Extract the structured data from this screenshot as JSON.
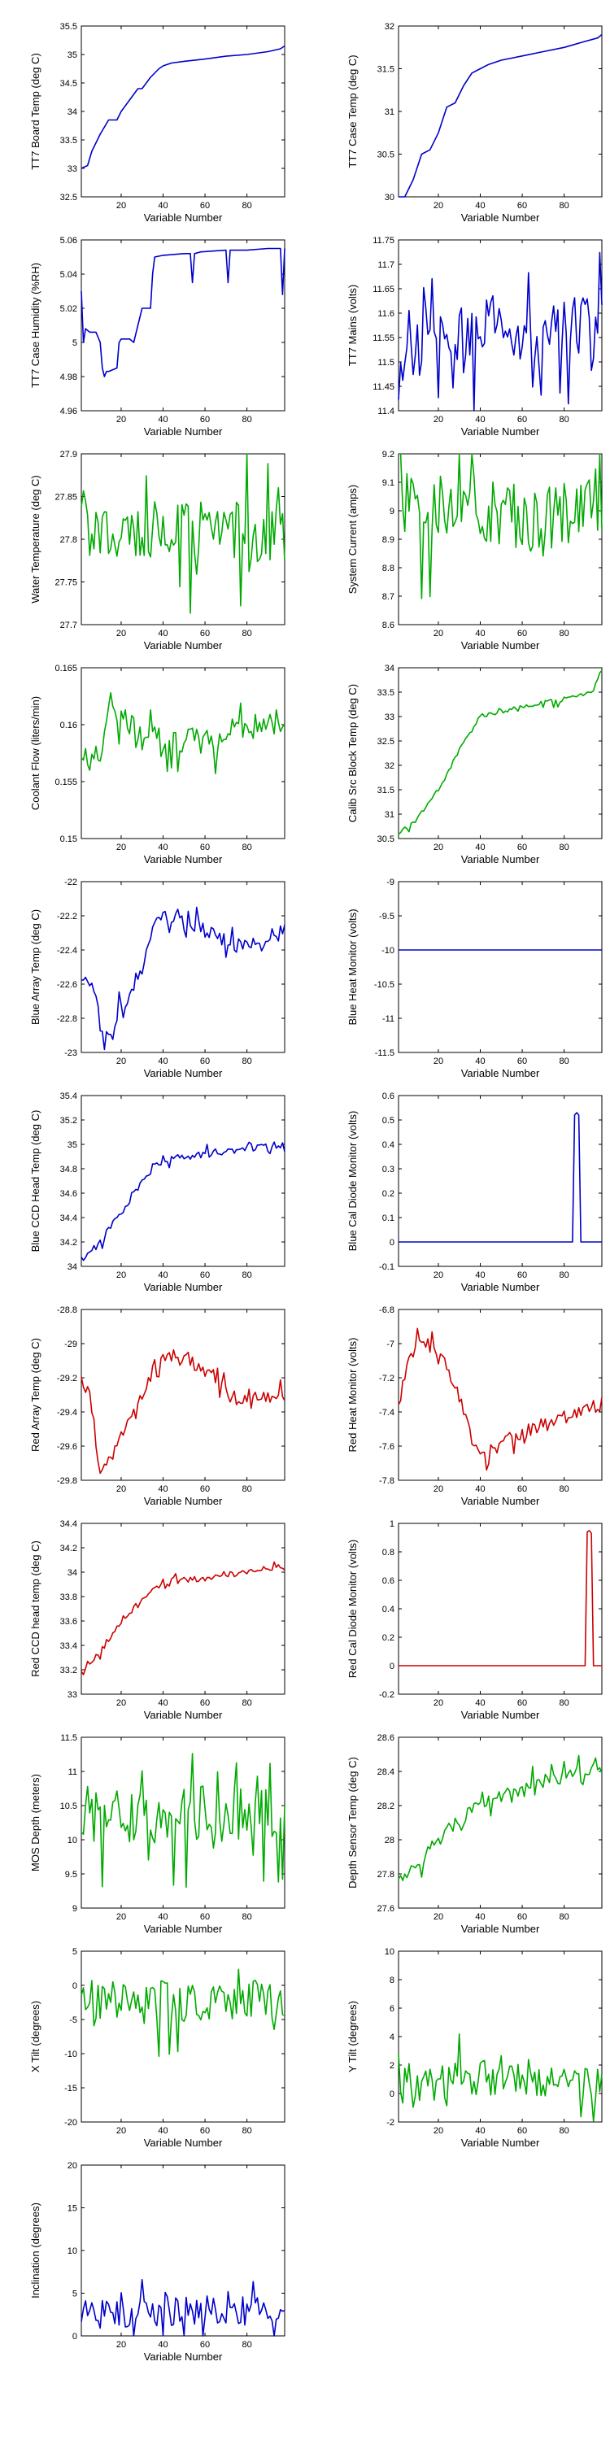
{
  "chart_data": [
    {
      "type": "line",
      "ylabel": "TT7 Board Temp (deg C)",
      "xlabel": "Variable Number",
      "xlim": [
        1,
        98
      ],
      "ylim": [
        32.5,
        35.5
      ],
      "xticks": [
        20,
        40,
        60,
        80
      ],
      "yticks": [
        "32.5",
        "33",
        "33.5",
        "34",
        "34.5",
        "35",
        "35.5"
      ],
      "color": "#0000cc",
      "style": "smooth",
      "series": [
        {
          "x": [
            1,
            4,
            6,
            10,
            14,
            18,
            20,
            24,
            28,
            30,
            34,
            38,
            40,
            44,
            50,
            60,
            70,
            80,
            90,
            96,
            98
          ],
          "values": [
            33.0,
            33.05,
            33.3,
            33.6,
            33.85,
            33.85,
            34.0,
            34.2,
            34.4,
            34.4,
            34.6,
            34.75,
            34.8,
            34.85,
            34.88,
            34.92,
            34.97,
            35.0,
            35.05,
            35.1,
            35.15
          ]
        }
      ]
    },
    {
      "type": "line",
      "ylabel": "TT7 Case Temp (deg C)",
      "xlabel": "Variable Number",
      "xlim": [
        1,
        98
      ],
      "ylim": [
        30,
        32
      ],
      "xticks": [
        20,
        40,
        60,
        80
      ],
      "yticks": [
        "30",
        "30.5",
        "31",
        "31.5",
        "32"
      ],
      "color": "#0000cc",
      "style": "smooth",
      "series": [
        {
          "x": [
            1,
            4,
            8,
            12,
            16,
            20,
            24,
            28,
            32,
            36,
            40,
            44,
            50,
            60,
            70,
            80,
            90,
            96,
            98
          ],
          "values": [
            30.0,
            30.0,
            30.2,
            30.5,
            30.55,
            30.75,
            31.05,
            31.1,
            31.3,
            31.45,
            31.5,
            31.55,
            31.6,
            31.65,
            31.7,
            31.75,
            31.82,
            31.86,
            31.9
          ]
        }
      ]
    },
    {
      "type": "line",
      "ylabel": "TT7 Case Humidity (%RH)",
      "xlabel": "Variable Number",
      "xlim": [
        1,
        98
      ],
      "ylim": [
        4.96,
        5.06
      ],
      "xticks": [
        20,
        40,
        60,
        80
      ],
      "yticks": [
        "4.96",
        "4.98",
        "5",
        "5.02",
        "5.04",
        "5.06"
      ],
      "color": "#0000cc",
      "style": "step",
      "series": [
        {
          "x": [
            1,
            2,
            3,
            5,
            8,
            10,
            11,
            12,
            13,
            14,
            18,
            19,
            20,
            24,
            26,
            30,
            34,
            35,
            36,
            40,
            50,
            53,
            54,
            55,
            58,
            70,
            71,
            72,
            80,
            90,
            96,
            97,
            98
          ],
          "values": [
            5.03,
            5.0,
            5.008,
            5.006,
            5.006,
            5.0,
            4.985,
            4.98,
            4.983,
            4.983,
            4.985,
            5.0,
            5.002,
            5.002,
            5.0,
            5.02,
            5.02,
            5.04,
            5.05,
            5.051,
            5.052,
            5.052,
            5.035,
            5.052,
            5.053,
            5.054,
            5.035,
            5.054,
            5.054,
            5.055,
            5.055,
            5.028,
            5.055
          ]
        }
      ]
    },
    {
      "type": "line",
      "ylabel": "TT7 Mains  (volts)",
      "xlabel": "Variable Number",
      "xlim": [
        1,
        98
      ],
      "ylim": [
        11.4,
        11.75
      ],
      "xticks": [
        20,
        40,
        60,
        80
      ],
      "yticks": [
        "11.4",
        "11.45",
        "11.5",
        "11.55",
        "11.6",
        "11.65",
        "11.7",
        "11.75"
      ],
      "color": "#0000cc",
      "style": "noisy",
      "trend": [
        [
          1,
          11.48
        ],
        [
          10,
          11.52
        ],
        [
          16,
          11.62
        ],
        [
          30,
          11.55
        ],
        [
          50,
          11.6
        ],
        [
          66,
          11.5
        ],
        [
          80,
          11.58
        ],
        [
          98,
          11.56
        ]
      ],
      "amp": 0.08,
      "seed": 4
    },
    {
      "type": "line",
      "ylabel": "Water Temperature (deg C)",
      "xlabel": "Variable Number",
      "xlim": [
        1,
        98
      ],
      "ylim": [
        27.7,
        27.9
      ],
      "xticks": [
        20,
        40,
        60,
        80
      ],
      "yticks": [
        "27.7",
        "27.75",
        "27.8",
        "27.85",
        "27.9"
      ],
      "color": "#00aa00",
      "style": "noisy",
      "trend": [
        [
          1,
          27.81
        ],
        [
          50,
          27.81
        ],
        [
          98,
          27.81
        ]
      ],
      "amp": 0.045,
      "seed": 5
    },
    {
      "type": "line",
      "ylabel": "System Current (amps)",
      "xlabel": "Variable Number",
      "xlim": [
        1,
        98
      ],
      "ylim": [
        8.6,
        9.2
      ],
      "xticks": [
        20,
        40,
        60,
        80
      ],
      "yticks": [
        "8.6",
        "8.7",
        "8.8",
        "8.9",
        "9",
        "9.1",
        "9.2"
      ],
      "color": "#00aa00",
      "style": "noisy",
      "trend": [
        [
          1,
          9.03
        ],
        [
          40,
          9.0
        ],
        [
          70,
          8.96
        ],
        [
          98,
          9.05
        ]
      ],
      "amp": 0.15,
      "seed": 6
    },
    {
      "type": "line",
      "ylabel": "Coolant Flow (liters/min)",
      "xlabel": "Variable Number",
      "xlim": [
        1,
        98
      ],
      "ylim": [
        0.15,
        0.165
      ],
      "xticks": [
        20,
        40,
        60,
        80
      ],
      "yticks": [
        "0.15",
        "0.155",
        "0.16",
        "0.165"
      ],
      "color": "#00aa00",
      "style": "noisy",
      "trend": [
        [
          1,
          0.157
        ],
        [
          10,
          0.157
        ],
        [
          14,
          0.162
        ],
        [
          30,
          0.159
        ],
        [
          60,
          0.1585
        ],
        [
          98,
          0.1605
        ]
      ],
      "amp": 0.0015,
      "seed": 7
    },
    {
      "type": "line",
      "ylabel": "Calib Src Block Temp (deg C)",
      "xlabel": "Variable Number",
      "xlim": [
        1,
        98
      ],
      "ylim": [
        30.5,
        34
      ],
      "xticks": [
        20,
        40,
        60,
        80
      ],
      "yticks": [
        "30.5",
        "31",
        "31.5",
        "32",
        "32.5",
        "33",
        "33.5",
        "34"
      ],
      "color": "#00aa00",
      "style": "noisy",
      "trend": [
        [
          1,
          30.6
        ],
        [
          10,
          30.9
        ],
        [
          20,
          31.5
        ],
        [
          30,
          32.3
        ],
        [
          40,
          33.0
        ],
        [
          60,
          33.2
        ],
        [
          80,
          33.35
        ],
        [
          94,
          33.5
        ],
        [
          96,
          33.8
        ],
        [
          98,
          33.9
        ]
      ],
      "amp": 0.06,
      "seed": 8
    },
    {
      "type": "line",
      "ylabel": "Blue Array Temp (deg C)",
      "xlabel": "Variable Number",
      "xlim": [
        1,
        98
      ],
      "ylim": [
        -23,
        -22
      ],
      "xticks": [
        20,
        40,
        60,
        80
      ],
      "yticks": [
        "-23",
        "-22.8",
        "-22.6",
        "-22.4",
        "-22.2",
        "-22"
      ],
      "color": "#0000cc",
      "style": "noisy",
      "trend": [
        [
          1,
          -22.55
        ],
        [
          6,
          -22.6
        ],
        [
          12,
          -22.95
        ],
        [
          20,
          -22.75
        ],
        [
          30,
          -22.5
        ],
        [
          38,
          -22.2
        ],
        [
          50,
          -22.2
        ],
        [
          60,
          -22.3
        ],
        [
          75,
          -22.38
        ],
        [
          90,
          -22.33
        ],
        [
          98,
          -22.3
        ]
      ],
      "amp": 0.06,
      "seed": 9
    },
    {
      "type": "line",
      "ylabel": "Blue Heat Monitor (volts)",
      "xlabel": "Variable Number",
      "xlim": [
        1,
        98
      ],
      "ylim": [
        -11.5,
        -9
      ],
      "xticks": [
        20,
        40,
        60,
        80
      ],
      "yticks": [
        "-11.5",
        "-11",
        "-10.5",
        "-10",
        "-9.5",
        "-9"
      ],
      "color": "#0000cc",
      "style": "smooth",
      "series": [
        {
          "x": [
            1,
            98
          ],
          "values": [
            -10.0,
            -10.0
          ]
        }
      ]
    },
    {
      "type": "line",
      "ylabel": "Blue CCD Head Temp (deg C)",
      "xlabel": "Variable Number",
      "xlim": [
        1,
        98
      ],
      "ylim": [
        34,
        35.4
      ],
      "xticks": [
        20,
        40,
        60,
        80
      ],
      "yticks": [
        "34",
        "34.2",
        "34.4",
        "34.6",
        "34.8",
        "35",
        "35.2",
        "35.4"
      ],
      "color": "#0000cc",
      "style": "noisy",
      "trend": [
        [
          1,
          34.05
        ],
        [
          10,
          34.2
        ],
        [
          20,
          34.45
        ],
        [
          30,
          34.7
        ],
        [
          40,
          34.88
        ],
        [
          60,
          34.92
        ],
        [
          80,
          34.97
        ],
        [
          98,
          35.0
        ]
      ],
      "amp": 0.04,
      "seed": 11
    },
    {
      "type": "line",
      "ylabel": "Blue Cal Diode Monitor (volts)",
      "xlabel": "Variable Number",
      "xlim": [
        1,
        98
      ],
      "ylim": [
        -0.1,
        0.6
      ],
      "xticks": [
        20,
        40,
        60,
        80
      ],
      "yticks": [
        "-0.1",
        "0",
        "0.1",
        "0.2",
        "0.3",
        "0.4",
        "0.5",
        "0.6"
      ],
      "color": "#0000cc",
      "style": "step",
      "series": [
        {
          "x": [
            1,
            84,
            85,
            86,
            87,
            88,
            98
          ],
          "values": [
            0.0,
            0.0,
            0.52,
            0.53,
            0.52,
            0.0,
            0.0
          ]
        }
      ]
    },
    {
      "type": "line",
      "ylabel": "Red Array Temp (deg C)",
      "xlabel": "Variable Number",
      "xlim": [
        1,
        98
      ],
      "ylim": [
        -29.8,
        -28.8
      ],
      "xticks": [
        20,
        40,
        60,
        80
      ],
      "yticks": [
        "-29.8",
        "-29.6",
        "-29.4",
        "-29.2",
        "-29",
        "-28.8"
      ],
      "color": "#cc0000",
      "style": "noisy",
      "trend": [
        [
          1,
          -29.2
        ],
        [
          5,
          -29.3
        ],
        [
          10,
          -29.75
        ],
        [
          18,
          -29.6
        ],
        [
          26,
          -29.4
        ],
        [
          35,
          -29.15
        ],
        [
          40,
          -29.05
        ],
        [
          55,
          -29.12
        ],
        [
          65,
          -29.2
        ],
        [
          72,
          -29.32
        ],
        [
          85,
          -29.3
        ],
        [
          98,
          -29.32
        ]
      ],
      "amp": 0.05,
      "seed": 13
    },
    {
      "type": "line",
      "ylabel": "Red Heat Monitor (volts)",
      "xlabel": "Variable Number",
      "xlim": [
        1,
        98
      ],
      "ylim": [
        -7.8,
        -6.8
      ],
      "xticks": [
        20,
        40,
        60,
        80
      ],
      "yticks": [
        "-7.8",
        "-7.6",
        "-7.4",
        "-7.2",
        "-7",
        "-6.8"
      ],
      "color": "#cc0000",
      "style": "noisy",
      "trend": [
        [
          1,
          -7.35
        ],
        [
          6,
          -7.1
        ],
        [
          10,
          -6.95
        ],
        [
          20,
          -7.05
        ],
        [
          28,
          -7.25
        ],
        [
          36,
          -7.55
        ],
        [
          42,
          -7.65
        ],
        [
          55,
          -7.55
        ],
        [
          75,
          -7.45
        ],
        [
          98,
          -7.35
        ]
      ],
      "amp": 0.05,
      "seed": 14
    },
    {
      "type": "line",
      "ylabel": "Red CCD head temp (deg C)",
      "xlabel": "Variable Number",
      "xlim": [
        1,
        98
      ],
      "ylim": [
        33,
        34.4
      ],
      "xticks": [
        20,
        40,
        60,
        80
      ],
      "yticks": [
        "33",
        "33.2",
        "33.4",
        "33.6",
        "33.8",
        "34",
        "34.2",
        "34.4"
      ],
      "color": "#cc0000",
      "style": "noisy",
      "trend": [
        [
          1,
          33.2
        ],
        [
          10,
          33.35
        ],
        [
          20,
          33.6
        ],
        [
          30,
          33.78
        ],
        [
          40,
          33.92
        ],
        [
          60,
          33.95
        ],
        [
          80,
          34.0
        ],
        [
          98,
          34.05
        ]
      ],
      "amp": 0.03,
      "seed": 15
    },
    {
      "type": "line",
      "ylabel": "Red Cal Diode Monitor (volts)",
      "xlabel": "Variable Number",
      "xlim": [
        1,
        98
      ],
      "ylim": [
        -0.2,
        1
      ],
      "xticks": [
        20,
        40,
        60,
        80
      ],
      "yticks": [
        "-0.2",
        "0",
        "0.2",
        "0.4",
        "0.6",
        "0.8",
        "1"
      ],
      "color": "#cc0000",
      "style": "step",
      "series": [
        {
          "x": [
            1,
            90,
            91,
            92,
            93,
            94,
            98
          ],
          "values": [
            0.0,
            0.0,
            0.94,
            0.95,
            0.93,
            0.0,
            0.0
          ]
        }
      ]
    },
    {
      "type": "line",
      "ylabel": "MOS Depth  (meters)",
      "xlabel": "Variable Number",
      "xlim": [
        1,
        98
      ],
      "ylim": [
        9,
        11.5
      ],
      "xticks": [
        20,
        40,
        60,
        80
      ],
      "yticks": [
        "9",
        "9.5",
        "10",
        "10.5",
        "11",
        "11.5"
      ],
      "color": "#00aa00",
      "style": "noisy",
      "trend": [
        [
          1,
          10.4
        ],
        [
          50,
          10.35
        ],
        [
          98,
          10.4
        ]
      ],
      "amp": 0.55,
      "seed": 17
    },
    {
      "type": "line",
      "ylabel": "Depth Sensor Temp (deg C)",
      "xlabel": "Variable Number",
      "xlim": [
        1,
        98
      ],
      "ylim": [
        27.6,
        28.6
      ],
      "xticks": [
        20,
        40,
        60,
        80
      ],
      "yticks": [
        "27.6",
        "27.8",
        "28",
        "28.2",
        "28.4",
        "28.6"
      ],
      "color": "#00aa00",
      "style": "noisy",
      "trend": [
        [
          1,
          27.75
        ],
        [
          10,
          27.85
        ],
        [
          20,
          28.0
        ],
        [
          30,
          28.12
        ],
        [
          40,
          28.22
        ],
        [
          60,
          28.3
        ],
        [
          80,
          28.37
        ],
        [
          98,
          28.42
        ]
      ],
      "amp": 0.05,
      "seed": 18
    },
    {
      "type": "line",
      "ylabel": "X Tilt  (degrees)",
      "xlabel": "Variable Number",
      "xlim": [
        1,
        98
      ],
      "ylim": [
        -20,
        5
      ],
      "xticks": [
        20,
        40,
        60,
        80
      ],
      "yticks": [
        "-20",
        "-15",
        "-10",
        "-5",
        "0",
        "5"
      ],
      "color": "#00aa00",
      "style": "noisy",
      "trend": [
        [
          1,
          -2
        ],
        [
          50,
          -2.5
        ],
        [
          98,
          -2
        ]
      ],
      "amp": 3.5,
      "seed": 19
    },
    {
      "type": "line",
      "ylabel": "Y Tilt  (degrees)",
      "xlabel": "Variable Number",
      "xlim": [
        1,
        98
      ],
      "ylim": [
        -2,
        10
      ],
      "xticks": [
        20,
        40,
        60,
        80
      ],
      "yticks": [
        "-2",
        "0",
        "2",
        "4",
        "6",
        "8",
        "10"
      ],
      "color": "#00aa00",
      "style": "noisy",
      "trend": [
        [
          1,
          0.5
        ],
        [
          50,
          1.2
        ],
        [
          98,
          1.0
        ]
      ],
      "amp": 1.6,
      "seed": 20
    },
    {
      "type": "line",
      "ylabel": "Inclination  (degrees)",
      "xlabel": "Variable Number",
      "xlim": [
        1,
        98
      ],
      "ylim": [
        0,
        20
      ],
      "xticks": [
        20,
        40,
        60,
        80
      ],
      "yticks": [
        "0",
        "5",
        "10",
        "15",
        "20"
      ],
      "color": "#0000cc",
      "style": "noisy",
      "trend": [
        [
          1,
          2.5
        ],
        [
          50,
          3.0
        ],
        [
          98,
          2.8
        ]
      ],
      "amp": 2.2,
      "seed": 21
    }
  ]
}
